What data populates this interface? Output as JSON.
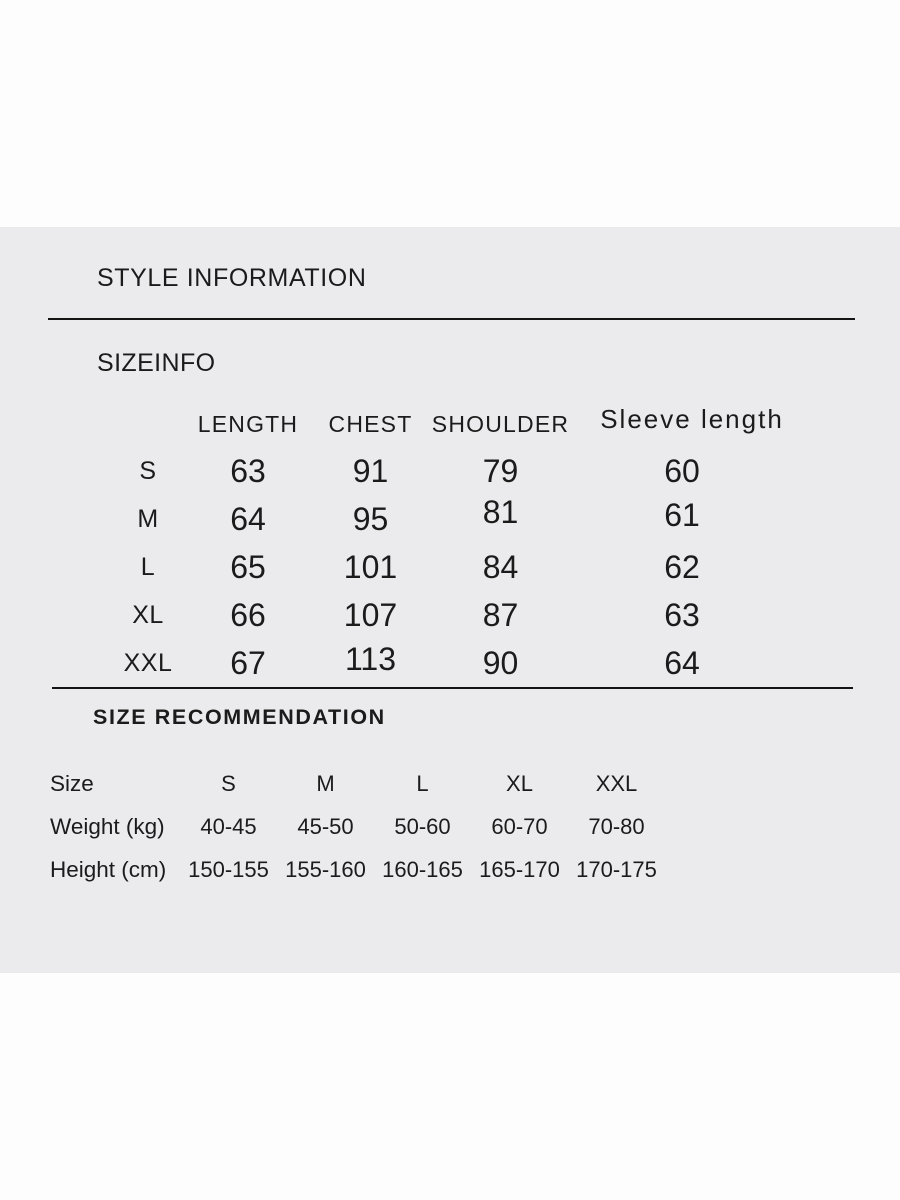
{
  "colors": {
    "panel_bg": "#ebebed",
    "outer_bg": "#fdfdfd",
    "text": "#1b1b1b",
    "divider": "#141414"
  },
  "headings": {
    "style_information": "STYLE INFORMATION",
    "sizeinfo": "SIZEINFO",
    "size_recommendation": "SIZE RECOMMENDATION"
  },
  "size_table": {
    "columns": [
      "LENGTH",
      "CHEST",
      "SHOULDER",
      "Sleeve length"
    ],
    "rows": [
      {
        "size": "S",
        "values": [
          "63",
          "91",
          "79",
          "60"
        ]
      },
      {
        "size": "M",
        "values": [
          "64",
          "95",
          "81",
          "61"
        ]
      },
      {
        "size": "L",
        "values": [
          "65",
          "101",
          "84",
          "62"
        ]
      },
      {
        "size": "XL",
        "values": [
          "66",
          "107",
          "87",
          "63"
        ]
      },
      {
        "size": "XXL",
        "values": [
          "67",
          "113",
          "90",
          "64"
        ]
      }
    ]
  },
  "recommendation_table": {
    "rows": [
      {
        "label": "Size",
        "values": [
          "S",
          "M",
          "L",
          "XL",
          "XXL"
        ]
      },
      {
        "label": "Weight (kg)",
        "values": [
          "40-45",
          "45-50",
          "50-60",
          "60-70",
          "70-80"
        ]
      },
      {
        "label": "Height (cm)",
        "values": [
          "150-155",
          "155-160",
          "160-165",
          "165-170",
          "170-175"
        ]
      }
    ]
  }
}
